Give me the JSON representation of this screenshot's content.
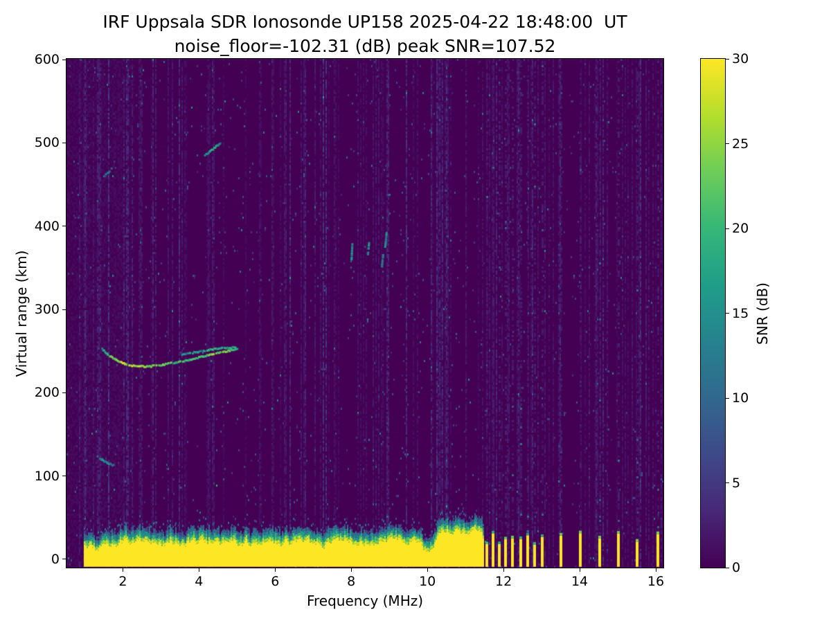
{
  "chart_data": {
    "type": "heatmap",
    "title": "IRF Uppsala SDR Ionosonde UP158 2025-04-22 18:48:00  UT",
    "subtitle": "noise_floor=-102.31 (dB) peak SNR=107.52",
    "station": "UP158",
    "timestamp_ut": "2025-04-22 18:48:00",
    "noise_floor_db": -102.31,
    "peak_snr_db": 107.52,
    "xlabel": "Frequency (MHz)",
    "ylabel": "Virtual range (km)",
    "xlim": [
      0.52,
      16.2
    ],
    "ylim": [
      -10,
      601
    ],
    "xticks": [
      2,
      4,
      6,
      8,
      10,
      12,
      14,
      16
    ],
    "yticks": [
      0,
      100,
      200,
      300,
      400,
      500,
      600
    ],
    "colorbar": {
      "label": "SNR (dB)",
      "min": 0,
      "max": 30,
      "ticks": [
        0,
        5,
        10,
        15,
        20,
        25,
        30
      ],
      "colormap": "viridis"
    },
    "ground_clutter": {
      "x_start": 0.98,
      "x_end": 11.45,
      "y_bottom": -9,
      "top_base_km": 24,
      "top_jitter_km": 11,
      "left_region": {
        "x_end": 1.35,
        "top_base_km": 15
      },
      "tall_region": {
        "x_start": 10.15,
        "x_end": 11.45,
        "top_base_km": 38
      },
      "notch": {
        "x_start": 9.85,
        "x_end": 10.12,
        "top_base_km": 12
      }
    },
    "rfi_stripes_mhz": [
      11.57,
      11.73,
      11.89,
      12.05,
      12.24,
      12.45,
      12.64,
      12.82,
      13.02,
      13.51,
      14.02,
      14.53,
      15.02,
      15.51,
      16.05
    ],
    "echo_traces": [
      {
        "name": "f-layer-trace",
        "snr_db": 22,
        "points": [
          [
            1.45,
            253,
            16
          ],
          [
            1.6,
            246,
            20
          ],
          [
            1.8,
            240,
            24
          ],
          [
            2.05,
            235,
            26
          ],
          [
            2.35,
            232,
            26
          ],
          [
            2.7,
            232,
            24
          ],
          [
            3.05,
            234,
            22
          ],
          [
            3.4,
            237,
            20
          ],
          [
            3.75,
            240,
            20
          ],
          [
            4.1,
            244,
            22
          ],
          [
            4.45,
            248,
            24
          ],
          [
            4.8,
            251,
            22
          ],
          [
            5.0,
            253,
            18
          ]
        ]
      },
      {
        "name": "f-layer-trace-upper",
        "snr_db": 17,
        "points": [
          [
            3.55,
            246,
            14
          ],
          [
            3.9,
            249,
            16
          ],
          [
            4.25,
            252,
            18
          ],
          [
            4.6,
            254,
            18
          ],
          [
            4.95,
            255,
            16
          ]
        ]
      },
      {
        "name": "second-hop-arc",
        "snr_db": 17,
        "points": [
          [
            4.15,
            486,
            14
          ],
          [
            4.28,
            490,
            18
          ],
          [
            4.42,
            495,
            18
          ],
          [
            4.55,
            500,
            15
          ]
        ]
      },
      {
        "name": "e-region-trace",
        "snr_db": 13,
        "points": [
          [
            1.3,
            125,
            11
          ],
          [
            1.45,
            120,
            14
          ],
          [
            1.6,
            116,
            13
          ],
          [
            1.75,
            113,
            11
          ]
        ]
      },
      {
        "name": "faint-echo-465km",
        "snr_db": 10,
        "points": [
          [
            1.5,
            460,
            9
          ],
          [
            1.72,
            470,
            11
          ]
        ]
      },
      {
        "name": "spread-f-patch-1",
        "snr_db": 14,
        "points": [
          [
            8.0,
            360
          ],
          [
            8.02,
            378
          ]
        ]
      },
      {
        "name": "spread-f-patch-2",
        "snr_db": 15,
        "points": [
          [
            8.43,
            366
          ],
          [
            8.46,
            380
          ]
        ]
      },
      {
        "name": "spread-f-patch-3",
        "snr_db": 13,
        "points": [
          [
            8.8,
            352
          ],
          [
            8.83,
            366
          ]
        ]
      },
      {
        "name": "spread-f-patch-4",
        "snr_db": 14,
        "points": [
          [
            8.88,
            374
          ],
          [
            8.92,
            392
          ]
        ]
      }
    ]
  }
}
